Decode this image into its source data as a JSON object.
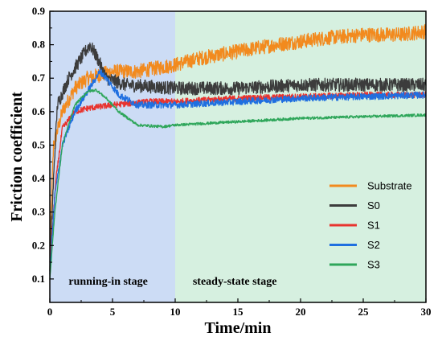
{
  "chart_data": {
    "type": "line",
    "title": "",
    "xlabel": "Time/min",
    "ylabel": "Friction coefficient",
    "xlim": [
      0,
      30
    ],
    "ylim": [
      0.03,
      0.9
    ],
    "x_ticks": [
      0,
      5,
      10,
      15,
      20,
      25,
      30
    ],
    "y_ticks": [
      0.1,
      0.2,
      0.3,
      0.4,
      0.5,
      0.6,
      0.7,
      0.8,
      0.9
    ],
    "grid": false,
    "legend_position": "lower-right",
    "regions": [
      {
        "label": "running-in stage",
        "x_range": [
          0,
          10
        ],
        "color": "#ccdcf5"
      },
      {
        "label": "steady-state stage",
        "x_range": [
          10,
          30
        ],
        "color": "#d6f0e0"
      }
    ],
    "series": [
      {
        "name": "Substrate",
        "color": "#f28a1e",
        "noise": 0.022,
        "points": [
          [
            0,
            0.2
          ],
          [
            0.3,
            0.5
          ],
          [
            1,
            0.6
          ],
          [
            2,
            0.67
          ],
          [
            3,
            0.7
          ],
          [
            4,
            0.71
          ],
          [
            5,
            0.72
          ],
          [
            7,
            0.72
          ],
          [
            10,
            0.74
          ],
          [
            12,
            0.76
          ],
          [
            15,
            0.78
          ],
          [
            18,
            0.8
          ],
          [
            20,
            0.81
          ],
          [
            22,
            0.82
          ],
          [
            25,
            0.83
          ],
          [
            28,
            0.83
          ],
          [
            30,
            0.84
          ]
        ]
      },
      {
        "name": "S0",
        "color": "#3c3c3c",
        "noise": 0.02,
        "points": [
          [
            0,
            0.14
          ],
          [
            0.3,
            0.4
          ],
          [
            0.6,
            0.62
          ],
          [
            1.5,
            0.7
          ],
          [
            2.5,
            0.76
          ],
          [
            3.2,
            0.8
          ],
          [
            3.8,
            0.76
          ],
          [
            4.5,
            0.7
          ],
          [
            6,
            0.68
          ],
          [
            10,
            0.67
          ],
          [
            15,
            0.67
          ],
          [
            20,
            0.68
          ],
          [
            25,
            0.68
          ],
          [
            30,
            0.68
          ]
        ]
      },
      {
        "name": "S1",
        "color": "#e8332e",
        "noise": 0.009,
        "points": [
          [
            0,
            0.15
          ],
          [
            0.5,
            0.4
          ],
          [
            1,
            0.55
          ],
          [
            2,
            0.6
          ],
          [
            3,
            0.61
          ],
          [
            5,
            0.62
          ],
          [
            8,
            0.63
          ],
          [
            10,
            0.63
          ],
          [
            15,
            0.64
          ],
          [
            20,
            0.645
          ],
          [
            25,
            0.65
          ],
          [
            30,
            0.65
          ]
        ]
      },
      {
        "name": "S2",
        "color": "#1f6fe0",
        "noise": 0.01,
        "points": [
          [
            0,
            0.12
          ],
          [
            0.4,
            0.35
          ],
          [
            1,
            0.5
          ],
          [
            2,
            0.6
          ],
          [
            3,
            0.66
          ],
          [
            4,
            0.72
          ],
          [
            4.5,
            0.7
          ],
          [
            5.5,
            0.65
          ],
          [
            7,
            0.62
          ],
          [
            10,
            0.62
          ],
          [
            15,
            0.63
          ],
          [
            20,
            0.64
          ],
          [
            25,
            0.645
          ],
          [
            30,
            0.65
          ]
        ]
      },
      {
        "name": "S3",
        "color": "#2ea65a",
        "noise": 0.004,
        "points": [
          [
            0,
            0.1
          ],
          [
            0.4,
            0.3
          ],
          [
            1,
            0.5
          ],
          [
            2,
            0.62
          ],
          [
            3,
            0.66
          ],
          [
            3.7,
            0.665
          ],
          [
            4.5,
            0.64
          ],
          [
            5.5,
            0.6
          ],
          [
            7,
            0.56
          ],
          [
            9,
            0.555
          ],
          [
            10,
            0.56
          ],
          [
            15,
            0.57
          ],
          [
            20,
            0.58
          ],
          [
            25,
            0.585
          ],
          [
            30,
            0.59
          ]
        ]
      }
    ]
  }
}
